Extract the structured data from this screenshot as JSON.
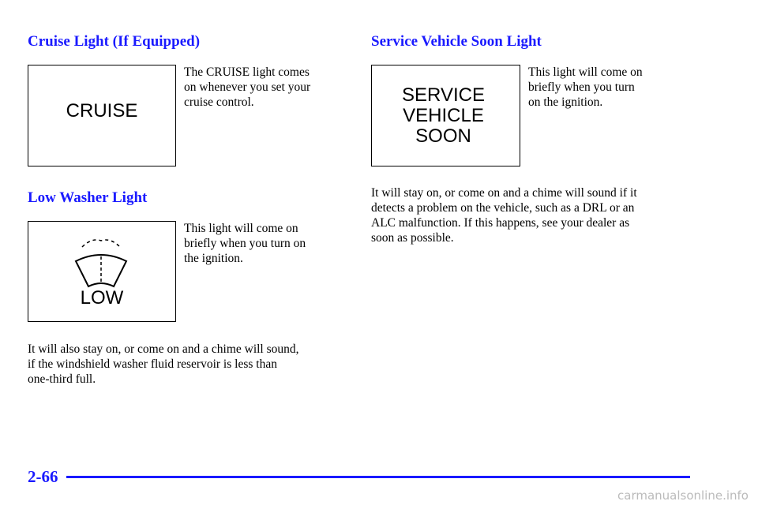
{
  "sections": [
    {
      "heading": "Cruise Light (If Equipped)",
      "indicator": [
        "CRUISE"
      ],
      "description": [
        "The CRUISE light comes",
        "on whenever you set your",
        "cruise control."
      ]
    },
    {
      "heading": "Low Washer Light",
      "indicator": [
        "LOW"
      ],
      "description": [
        "This light will come on",
        "briefly when you turn on",
        "the ignition."
      ],
      "note": [
        "It will also stay on, or come on and a chime will sound,",
        "if the windshield washer fluid reservoir is less than",
        "one-third full."
      ]
    },
    {
      "heading": "Service Vehicle Soon Light",
      "indicator": [
        "SERVICE",
        "VEHICLE",
        "SOON"
      ],
      "description": [
        "This light will come on",
        "briefly when you turn",
        "on the ignition."
      ],
      "note": [
        "It will stay on, or come on and a chime will sound if it",
        "detects a problem on the vehicle, such as a DRL or an",
        "ALC malfunction. If this happens, see your dealer as",
        "soon as possible."
      ]
    }
  ],
  "footer": {
    "page_number": "2-66",
    "watermark": "carmanualsonline.info"
  }
}
